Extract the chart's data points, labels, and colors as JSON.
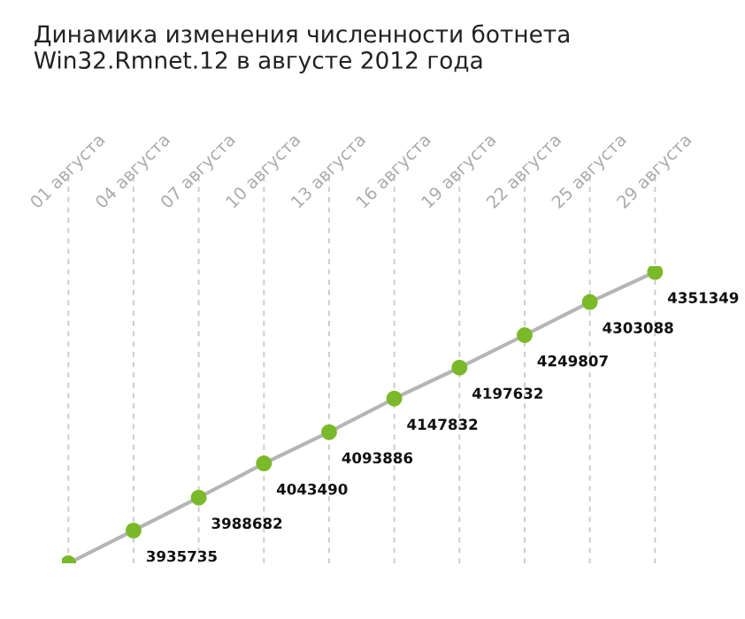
{
  "chart_data": {
    "type": "line",
    "title": "Динамика изменения численности ботнета\nWin32.Rmnet.12 в августе 2012 года",
    "categories": [
      "01 августа",
      "04 августа",
      "07 августа",
      "10 августа",
      "13 августа",
      "16 августа",
      "19 августа",
      "22 августа",
      "25 августа",
      "29 августа"
    ],
    "series": [
      {
        "color": "#b5b5b5",
        "colors": [
          "#7ab929",
          "#7ab929",
          "#7ab929",
          "#7ab929",
          "#7ab929",
          "#7ab929",
          "#7ab929",
          "#7ab929",
          "#7ab929",
          "#7ab929"
        ],
        "values": [
          3883000,
          3935735,
          3988682,
          4043490,
          4093886,
          4147832,
          4197632,
          4249807,
          4303088,
          4351349
        ],
        "value_labels": [
          null,
          "3935735",
          "3988682",
          "4043490",
          "4093886",
          "4147832",
          "4197632",
          "4249807",
          "4303088",
          "4351349"
        ]
      }
    ],
    "marker": "circle",
    "grid": "x",
    "tick_labels": "x"
  }
}
